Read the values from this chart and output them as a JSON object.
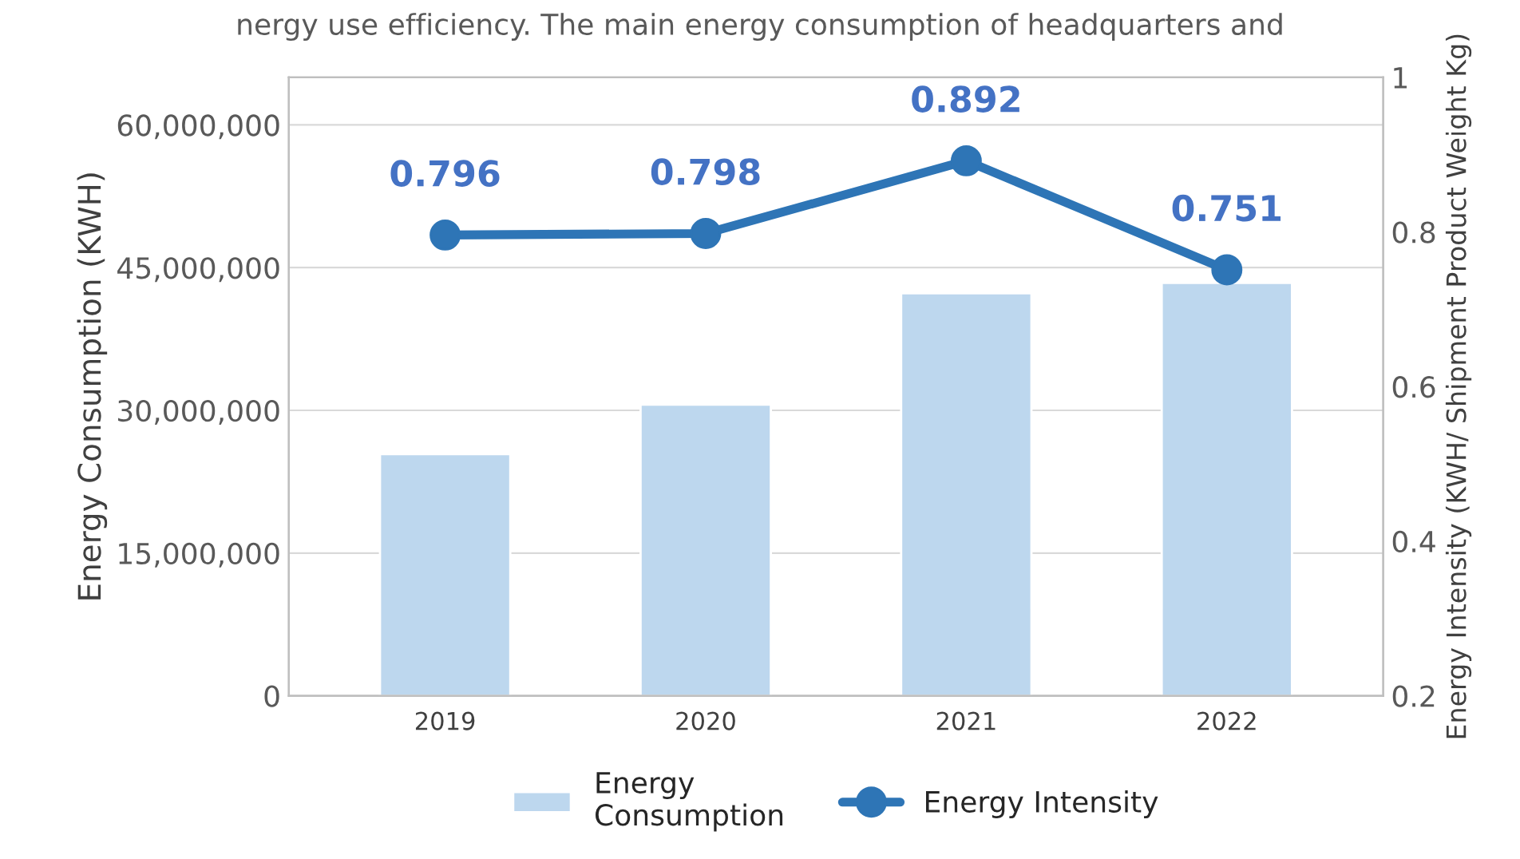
{
  "chart_data": {
    "type": "bar",
    "categories": [
      "2019",
      "2020",
      "2021",
      "2022"
    ],
    "ylabel": "Energy Consumption (KWH)",
    "y2label": "Energy Intensity (KWH/ Shipment Product Weight Kg)",
    "ylim": [
      0,
      65000000
    ],
    "yticks": [
      {
        "value": 0,
        "label": "0"
      },
      {
        "value": 15000000,
        "label": "15,000,000"
      },
      {
        "value": 30000000,
        "label": "30,000,000"
      },
      {
        "value": 45000000,
        "label": "45,000,000"
      },
      {
        "value": 60000000,
        "label": "60,000,000"
      }
    ],
    "y2lim": [
      0.2,
      1
    ],
    "y2ticks": [
      0.2,
      0.4,
      0.6,
      0.8,
      1
    ],
    "grid": "y",
    "legend": "bottom",
    "marker": "circle",
    "line_style": "solid",
    "annotations": [
      "nergy use efficiency. The main energy consumption of headquarters and"
    ],
    "series": [
      {
        "name": "Energy Consumption",
        "color": "#bdd7ee",
        "values": [
          25400000,
          30600000,
          42300000,
          43400000
        ]
      },
      {
        "name": "Energy Intensity",
        "type": "line",
        "axis": "y2",
        "color": "#2e75b6",
        "values": [
          0.796,
          0.798,
          0.892,
          0.751
        ],
        "data_labels": true
      }
    ]
  }
}
